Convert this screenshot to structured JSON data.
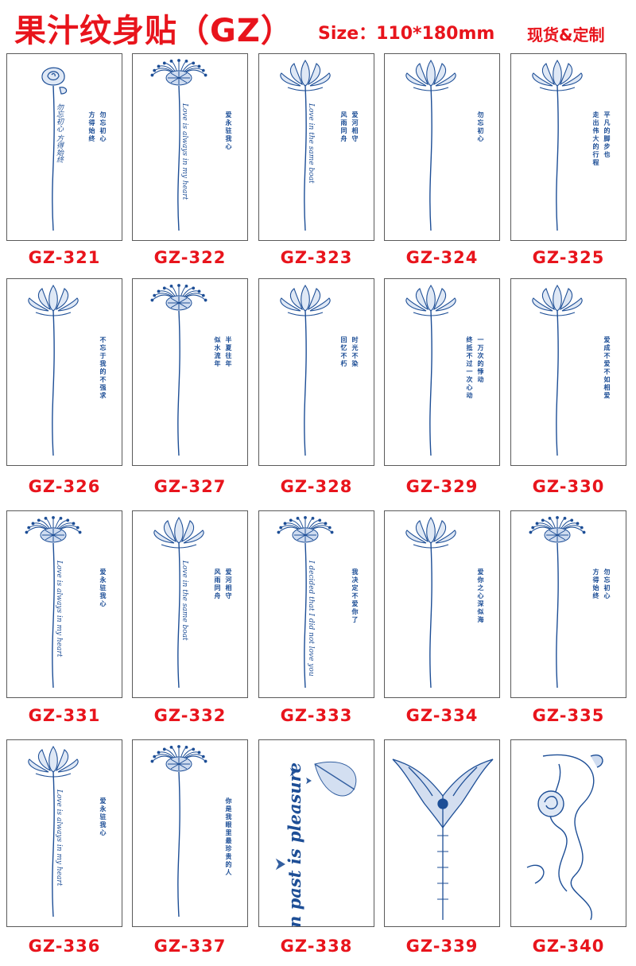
{
  "header": {
    "title": "果汁纹身贴（GZ）",
    "size": "Size：110*180mm",
    "badge": "现货&定制"
  },
  "colors": {
    "accent": "#e8141c",
    "ink": "#1d4e96",
    "border": "#5a5a5a"
  },
  "products": [
    {
      "code": "GZ-321",
      "motif": "rose",
      "script": "勿忘初心 方得始终",
      "side": [
        "勿忘初心",
        "方得始终"
      ]
    },
    {
      "code": "GZ-322",
      "motif": "spider-lily",
      "script": "Love is always in my heart",
      "side": [
        "爱永驻我心"
      ]
    },
    {
      "code": "GZ-323",
      "motif": "lotus",
      "script": "Love in the same boat",
      "side": [
        "爱河相守",
        "风雨同舟"
      ]
    },
    {
      "code": "GZ-324",
      "motif": "lotus",
      "script": "",
      "side": [
        "勿忘初心"
      ]
    },
    {
      "code": "GZ-325",
      "motif": "lotus",
      "script": "",
      "side": [
        "平凡的脚步也",
        "走出伟大的行程"
      ]
    },
    {
      "code": "GZ-326",
      "motif": "lotus",
      "script": "",
      "side": [
        "不忘于我的不强求"
      ]
    },
    {
      "code": "GZ-327",
      "motif": "spider-lily",
      "script": "",
      "side": [
        "半夏往年",
        "似水流年"
      ]
    },
    {
      "code": "GZ-328",
      "motif": "lotus",
      "script": "",
      "side": [
        "时光不染",
        "回忆不朽"
      ]
    },
    {
      "code": "GZ-329",
      "motif": "lotus",
      "script": "",
      "side": [
        "一万次的悸动",
        "终抵不过一次心动"
      ]
    },
    {
      "code": "GZ-330",
      "motif": "lotus",
      "script": "",
      "side": [
        "爱成不爱不如相爱"
      ]
    },
    {
      "code": "GZ-331",
      "motif": "spider-lily",
      "script": "Love is always in my heart",
      "side": [
        "爱永驻我心"
      ]
    },
    {
      "code": "GZ-332",
      "motif": "lotus",
      "script": "Love in the same boat",
      "side": [
        "爱河相守",
        "风雨同舟"
      ]
    },
    {
      "code": "GZ-333",
      "motif": "spider-lily",
      "script": "I decided that I did not love you",
      "side": [
        "我决定不爱你了"
      ]
    },
    {
      "code": "GZ-334",
      "motif": "lotus",
      "script": "",
      "side": [
        "爱你之心深似海"
      ]
    },
    {
      "code": "GZ-335",
      "motif": "spider-lily",
      "script": "",
      "side": [
        "勿忘初心",
        "方得始终"
      ]
    },
    {
      "code": "GZ-336",
      "motif": "lotus",
      "script": "Love is always in my heart",
      "side": [
        "爱永驻我心"
      ]
    },
    {
      "code": "GZ-337",
      "motif": "spider-lily",
      "script": "",
      "side": [
        "你是我眼里最珍贵的人"
      ]
    },
    {
      "code": "GZ-338",
      "motif": "feather",
      "script": "Pain past is pleasure",
      "side": []
    },
    {
      "code": "GZ-339",
      "motif": "tribal",
      "script": "",
      "side": []
    },
    {
      "code": "GZ-340",
      "motif": "rose-script",
      "script": "",
      "side": []
    }
  ]
}
